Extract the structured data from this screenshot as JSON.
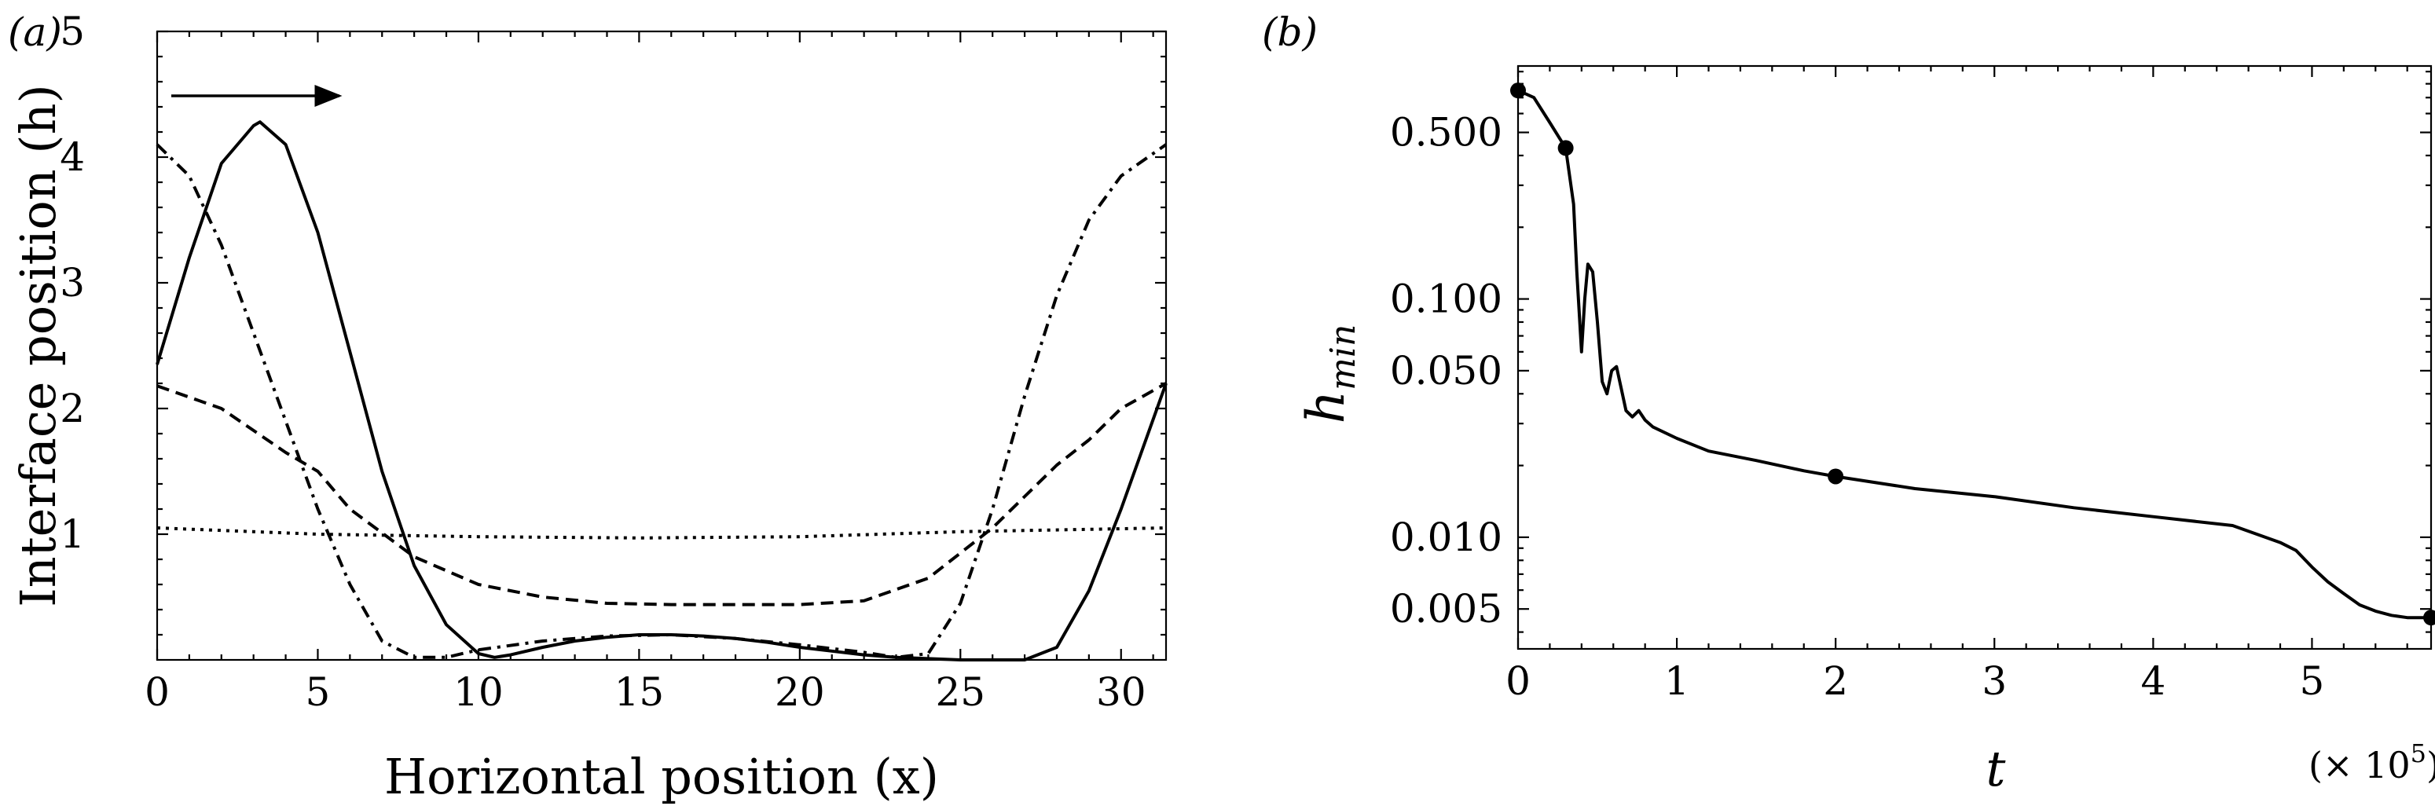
{
  "chart_data": [
    {
      "type": "line",
      "panel_label": "(a)",
      "xlabel": "Horizontal position (x)",
      "ylabel": "Interface position (h)",
      "xlim": [
        0,
        31.4
      ],
      "ylim": [
        0,
        5
      ],
      "xticks": [
        "0",
        "5",
        "10",
        "15",
        "20",
        "25",
        "30"
      ],
      "yticks": [
        "1",
        "2",
        "3",
        "4",
        "5"
      ],
      "grid": false,
      "annotation": "rightward arrow at top-left (direction of travel)",
      "series": [
        {
          "style": "solid",
          "x": [
            0,
            1,
            2,
            3,
            3.2,
            4,
            5,
            6,
            7,
            8,
            9,
            10,
            10.5,
            11,
            12,
            13,
            14,
            15,
            16,
            17,
            18,
            19,
            20,
            21,
            22,
            23,
            24,
            25,
            26,
            27,
            28,
            29,
            30,
            31.4
          ],
          "y": [
            2.35,
            3.2,
            3.95,
            4.25,
            4.28,
            4.1,
            3.4,
            2.45,
            1.5,
            0.75,
            0.28,
            0.05,
            0.02,
            0.04,
            0.1,
            0.15,
            0.18,
            0.2,
            0.2,
            0.19,
            0.17,
            0.14,
            0.1,
            0.07,
            0.04,
            0.02,
            0.01,
            0.0,
            0.0,
            0.0,
            0.1,
            0.55,
            1.2,
            2.2
          ]
        },
        {
          "style": "dashed",
          "x": [
            0,
            2,
            4,
            5,
            6,
            8,
            10,
            12,
            14,
            16,
            18,
            20,
            22,
            24,
            25,
            26,
            27,
            28,
            29,
            30,
            31.4
          ],
          "y": [
            2.18,
            2.0,
            1.65,
            1.5,
            1.2,
            0.82,
            0.6,
            0.5,
            0.45,
            0.44,
            0.44,
            0.44,
            0.47,
            0.65,
            0.85,
            1.05,
            1.3,
            1.55,
            1.75,
            2.0,
            2.2
          ]
        },
        {
          "style": "dotted",
          "x": [
            0,
            5,
            10,
            15,
            20,
            25,
            31.4
          ],
          "y": [
            1.05,
            1.0,
            0.98,
            0.97,
            0.98,
            1.02,
            1.05
          ]
        },
        {
          "style": "dash-dot",
          "x": [
            0,
            1,
            2,
            3,
            4,
            5,
            6,
            7,
            8,
            9,
            10,
            12,
            14,
            16,
            18,
            20,
            22,
            23,
            24,
            25,
            26,
            27,
            28,
            29,
            30,
            31.4
          ],
          "y": [
            4.1,
            3.85,
            3.3,
            2.6,
            1.9,
            1.2,
            0.6,
            0.15,
            0.02,
            0.02,
            0.08,
            0.15,
            0.19,
            0.2,
            0.17,
            0.12,
            0.06,
            0.02,
            0.05,
            0.45,
            1.2,
            2.1,
            2.9,
            3.5,
            3.85,
            4.1
          ]
        }
      ]
    },
    {
      "type": "line",
      "panel_label": "(b)",
      "xlabel": "t",
      "ylabel": "h",
      "ylabel_subscript": "min",
      "x_multiplier": "(× 10",
      "x_multiplier_exp": "5",
      "x_multiplier_close": ")",
      "xlim": [
        0,
        5.75
      ],
      "ylim": [
        0.0034,
        0.95
      ],
      "yscale": "log",
      "xticks": [
        "0",
        "1",
        "2",
        "3",
        "4",
        "5"
      ],
      "yticks": [
        "0.500",
        "0.100",
        "0.050",
        "0.010",
        "0.005"
      ],
      "grid": false,
      "series": [
        {
          "style": "solid",
          "x": [
            0,
            0.1,
            0.2,
            0.3,
            0.35,
            0.37,
            0.4,
            0.42,
            0.44,
            0.47,
            0.5,
            0.53,
            0.56,
            0.59,
            0.62,
            0.65,
            0.68,
            0.72,
            0.76,
            0.8,
            0.85,
            1.0,
            1.2,
            1.5,
            1.8,
            2.0,
            2.5,
            3.0,
            3.5,
            4.0,
            4.5,
            4.8,
            4.9,
            5.0,
            5.1,
            5.2,
            5.3,
            5.4,
            5.5,
            5.6,
            5.75
          ],
          "y": [
            0.75,
            0.7,
            0.55,
            0.43,
            0.25,
            0.13,
            0.06,
            0.1,
            0.14,
            0.13,
            0.08,
            0.045,
            0.04,
            0.05,
            0.052,
            0.042,
            0.034,
            0.032,
            0.034,
            0.031,
            0.029,
            0.026,
            0.023,
            0.021,
            0.019,
            0.018,
            0.016,
            0.0148,
            0.0133,
            0.0122,
            0.0112,
            0.0095,
            0.0088,
            0.0075,
            0.0065,
            0.0058,
            0.0052,
            0.0049,
            0.0047,
            0.0046,
            0.0046
          ]
        }
      ],
      "markers": [
        {
          "x": 0,
          "y": 0.75
        },
        {
          "x": 0.3,
          "y": 0.43
        },
        {
          "x": 2.0,
          "y": 0.018
        },
        {
          "x": 5.75,
          "y": 0.0046
        }
      ]
    }
  ]
}
